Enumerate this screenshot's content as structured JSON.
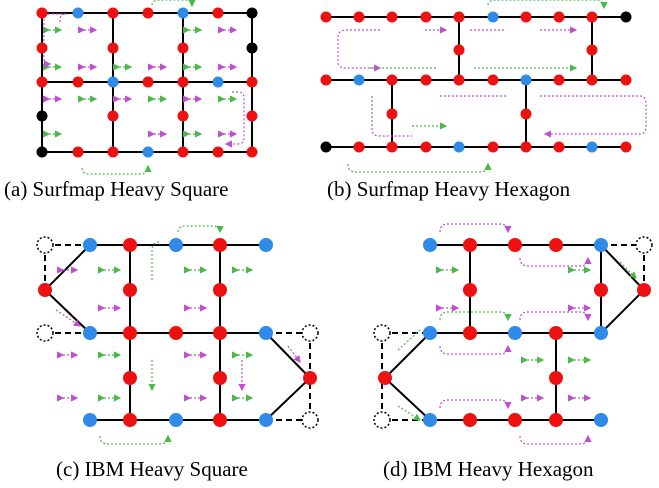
{
  "figure": {
    "panels": [
      {
        "id": "a",
        "caption": "(a) Surfmap Heavy Square"
      },
      {
        "id": "b",
        "caption": "(b) Surfmap Heavy Hexagon"
      },
      {
        "id": "c",
        "caption": "(c) IBM Heavy Square"
      },
      {
        "id": "d",
        "caption": "(d) IBM Heavy Hexagon"
      }
    ]
  },
  "legend_colors": {
    "data_qubit": "#ee1111",
    "ancilla_qubit": "#2f8ae8",
    "unused_qubit": "#000000",
    "absent_qubit_outline": "#000000",
    "cnot_path_a": "#4bb84b",
    "cnot_path_b": "#c04ed0",
    "coupling_edge": "#000000"
  }
}
